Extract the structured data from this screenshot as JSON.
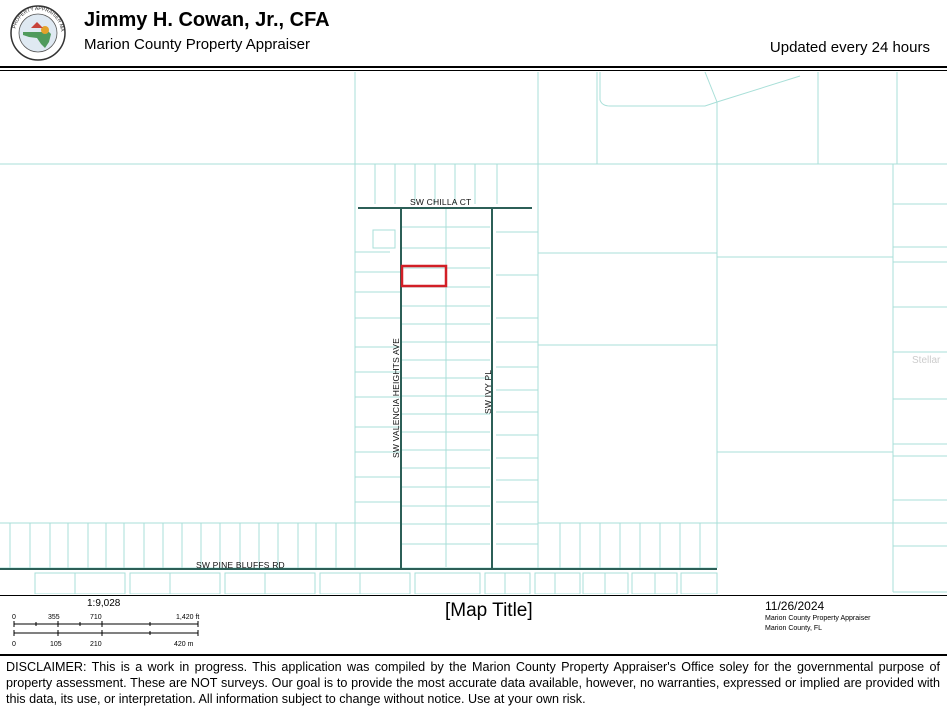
{
  "header": {
    "title": "Jimmy H. Cowan, Jr., CFA",
    "subtitle": "Marion County Property Appraiser",
    "updated": "Updated every 24 hours",
    "logo_icon": "county-seal-icon",
    "logo_text": "PROPERTY APPRAISER MARION COUNTY FLORIDA"
  },
  "map": {
    "streets": {
      "chilla": "SW CHILLA CT",
      "valencia": "SW VALENCIA HEIGHTS AVE",
      "ivy": "SW IVY PL",
      "pine_bluffs": "SW PINE BLUFFS RD"
    },
    "edge_label": "Stellar",
    "parcel_color": "#d21f26",
    "line_color": "#a8dfd8",
    "road_color": "#2c5f57"
  },
  "footer": {
    "scale_ratio": "1:9,028",
    "scale_ft": [
      "0",
      "355",
      "710",
      "1,420 ft"
    ],
    "scale_m": [
      "0",
      "105",
      "210",
      "420 m"
    ],
    "map_title": "[Map Title]",
    "date": "11/26/2024",
    "org": "Marion County Property Appraiser",
    "location": "Marion County, FL"
  },
  "disclaimer": "DISCLAIMER: This is a work in progress. This application was compiled by the Marion County Property Appraiser's Office soley for the governmental purpose of property assessment. These are NOT surveys. Our goal is to provide the most accurate data available, however, no warranties, expressed or implied are provided with this data, its use, or interpretation. All information subject to change without notice. Use at your own risk."
}
